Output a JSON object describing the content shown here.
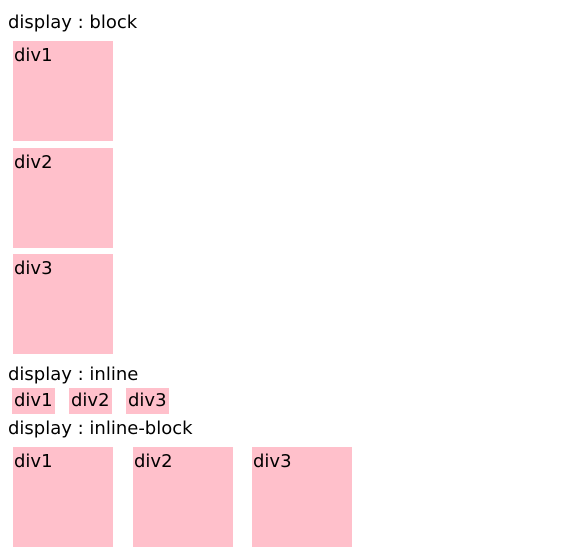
{
  "sections": {
    "block": {
      "title": "display : block",
      "items": [
        "div1",
        "div2",
        "div3"
      ]
    },
    "inline": {
      "title": "display : inline",
      "items": [
        "div1",
        "div2",
        "div3"
      ]
    },
    "inline_block": {
      "title": "display : inline-block",
      "items": [
        "div1",
        "div2",
        "div3"
      ]
    }
  },
  "colors": {
    "box_background": "#ffc0cb",
    "text": "#000000",
    "page_background": "#ffffff"
  }
}
